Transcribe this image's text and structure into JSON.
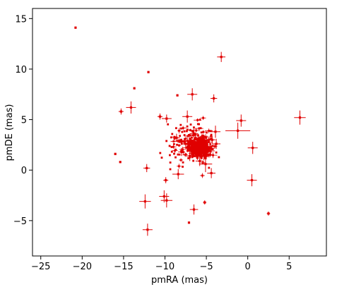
{
  "chart_data": {
    "type": "scatter",
    "xlabel": "pmRA (mas)",
    "ylabel": "pmDE (mas)",
    "xlim": [
      -26,
      9.5
    ],
    "ylim": [
      -8.5,
      16
    ],
    "xticks": [
      -25,
      -20,
      -15,
      -10,
      -5,
      0,
      5
    ],
    "yticks": [
      -5,
      0,
      5,
      10,
      15
    ],
    "xtick_labels": [
      "−25",
      "−20",
      "−15",
      "−10",
      "−5",
      "0",
      "5"
    ],
    "ytick_labels": [
      "−5",
      "0",
      "5",
      "10",
      "15"
    ],
    "grid": false,
    "legend": "none",
    "colors": {
      "points": "#e00000",
      "axes": "#000000",
      "background": "#ffffff"
    },
    "series": [
      {
        "points": [
          {
            "x": -20.8,
            "y": 14.1,
            "ex": 0.1,
            "ey": 0.1
          },
          {
            "x": -3.2,
            "y": 11.2,
            "ex": 0.5,
            "ey": 0.5
          },
          {
            "x": -12.0,
            "y": 9.7,
            "ex": 0.1,
            "ey": 0.1
          },
          {
            "x": -13.7,
            "y": 8.1,
            "ex": 0.1,
            "ey": 0.1
          },
          {
            "x": -6.7,
            "y": 7.5,
            "ex": 0.6,
            "ey": 0.6
          },
          {
            "x": -4.1,
            "y": 7.1,
            "ex": 0.4,
            "ey": 0.4
          },
          {
            "x": -8.5,
            "y": 7.4,
            "ex": 0.1,
            "ey": 0.1
          },
          {
            "x": -14.1,
            "y": 6.2,
            "ex": 0.6,
            "ey": 0.6
          },
          {
            "x": -15.3,
            "y": 5.8,
            "ex": 0.3,
            "ey": 0.3
          },
          {
            "x": -10.6,
            "y": 5.3,
            "ex": 0.3,
            "ey": 0.3
          },
          {
            "x": -9.8,
            "y": 5.1,
            "ex": 0.6,
            "ey": 0.4
          },
          {
            "x": -7.3,
            "y": 5.3,
            "ex": 0.6,
            "ey": 0.6
          },
          {
            "x": -0.8,
            "y": 4.9,
            "ex": 0.6,
            "ey": 0.6
          },
          {
            "x": 6.3,
            "y": 5.2,
            "ex": 0.7,
            "ey": 0.7
          },
          {
            "x": -1.2,
            "y": 3.9,
            "ex": 1.5,
            "ey": 0.8
          },
          {
            "x": 0.6,
            "y": 2.2,
            "ex": 0.6,
            "ey": 0.6
          },
          {
            "x": -8.6,
            "y": 3.2,
            "ex": 0.4,
            "ey": 0.4
          },
          {
            "x": -3.9,
            "y": 3.8,
            "ex": 0.6,
            "ey": 0.6
          },
          {
            "x": -16.0,
            "y": 1.6,
            "ex": 0.1,
            "ey": 0.1
          },
          {
            "x": -15.4,
            "y": 0.8,
            "ex": 0.1,
            "ey": 0.1
          },
          {
            "x": -12.2,
            "y": 0.2,
            "ex": 0.4,
            "ey": 0.4
          },
          {
            "x": -9.9,
            "y": -1.0,
            "ex": 0.3,
            "ey": 0.3
          },
          {
            "x": -8.4,
            "y": -0.4,
            "ex": 0.7,
            "ey": 0.5
          },
          {
            "x": -5.1,
            "y": 0.6,
            "ex": 0.8,
            "ey": 0.8
          },
          {
            "x": -4.4,
            "y": -0.3,
            "ex": 0.5,
            "ey": 0.5
          },
          {
            "x": 0.5,
            "y": -1.0,
            "ex": 0.6,
            "ey": 0.6
          },
          {
            "x": -10.1,
            "y": -2.6,
            "ex": 0.6,
            "ey": 0.6
          },
          {
            "x": -12.4,
            "y": -3.1,
            "ex": 0.7,
            "ey": 0.7
          },
          {
            "x": -9.8,
            "y": -3.0,
            "ex": 0.7,
            "ey": 0.7
          },
          {
            "x": -6.5,
            "y": -3.9,
            "ex": 0.5,
            "ey": 0.5
          },
          {
            "x": -5.2,
            "y": -3.2,
            "ex": 0.2,
            "ey": 0.2
          },
          {
            "x": -12.1,
            "y": -5.9,
            "ex": 0.6,
            "ey": 0.6
          },
          {
            "x": 2.5,
            "y": -4.3,
            "ex": 0.2,
            "ey": 0.2
          },
          {
            "x": -7.1,
            "y": -5.2,
            "ex": 0.1,
            "ey": 0.1
          },
          {
            "x": -6.2,
            "y": 2.3,
            "ex": 1.0,
            "ey": 1.0
          },
          {
            "x": -5.6,
            "y": 2.5,
            "ex": 0.8,
            "ey": 0.6
          },
          {
            "x": -6.8,
            "y": 2.0,
            "ex": 0.6,
            "ey": 0.6
          },
          {
            "x": -5.0,
            "y": 2.1,
            "ex": 0.7,
            "ey": 0.5
          },
          {
            "x": -4.5,
            "y": 1.9,
            "ex": 0.5,
            "ey": 0.5
          },
          {
            "x": -7.5,
            "y": 2.6,
            "ex": 0.5,
            "ey": 0.5
          },
          {
            "x": -6.0,
            "y": 3.1,
            "ex": 0.5,
            "ey": 0.5
          },
          {
            "x": -5.3,
            "y": 1.5,
            "ex": 0.5,
            "ey": 0.5
          },
          {
            "x": -7.0,
            "y": 1.4,
            "ex": 0.5,
            "ey": 0.5
          },
          {
            "x": -3.8,
            "y": 2.6,
            "ex": 0.5,
            "ey": 0.5
          },
          {
            "x": -6.5,
            "y": 3.6,
            "ex": 0.5,
            "ey": 0.5
          },
          {
            "x": -4.3,
            "y": 3.0,
            "ex": 0.4,
            "ey": 0.4
          },
          {
            "x": -8.0,
            "y": 1.8,
            "ex": 0.4,
            "ey": 0.4
          },
          {
            "x": -5.8,
            "y": 0.9,
            "ex": 0.5,
            "ey": 0.5
          }
        ]
      }
    ]
  }
}
